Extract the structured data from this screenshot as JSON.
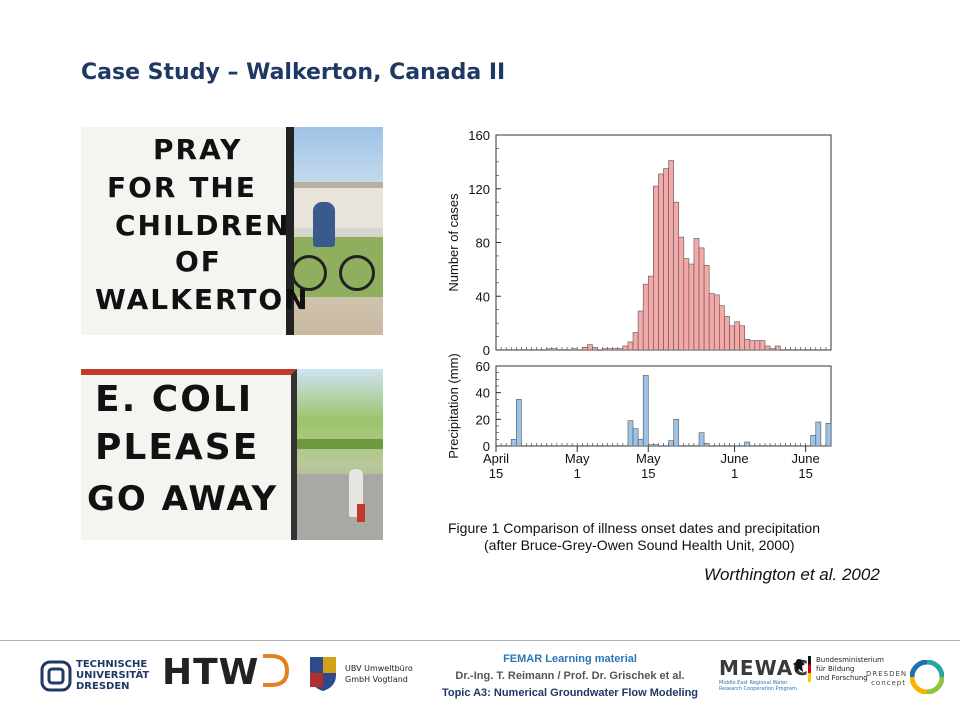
{
  "slide": {
    "title": "Case Study – Walkerton, Canada II",
    "caption_line1": "Figure 1  Comparison of illness onset dates and precipitation",
    "caption_line2": "(after Bruce-Grey-Owen Sound Health Unit, 2000)",
    "citation": "Worthington et al. 2002"
  },
  "photos": {
    "top_sign_lines": [
      "PRAY",
      "FOR   THE",
      "CHILDREN",
      "OF",
      "WALKERTON"
    ],
    "bottom_sign_lines": [
      "E. COLI",
      "PLEASE",
      "GO    AWAY"
    ]
  },
  "footer": {
    "tu_line1": "TECHNISCHE",
    "tu_line2": "UNIVERSITÄT",
    "tu_line3": "DRESDEN",
    "htwd": "HTW",
    "ubv_line1": "UBV Umweltbüro",
    "ubv_line2": "GmbH Vogtland",
    "center_line1": "FEMAR Learning  material",
    "center_line2": "Dr.-Ing. T. Reimann / Prof. Dr. Grischek et al.",
    "center_line3": "Topic A3: Numerical Groundwater Flow Modeling",
    "mewac": "MEWAC",
    "mewac_sub1": "Middle East Regional Water",
    "mewac_sub2": "Research Cooperation Program",
    "bmbf_line1": "Bundesministerium",
    "bmbf_line2": "für Bildung",
    "bmbf_line3": "und Forschung",
    "dc_line1": "DRESDEN",
    "dc_line2": "concept"
  },
  "chart_data": [
    {
      "type": "bar",
      "title": "",
      "ylabel": "Number of cases",
      "ylim": [
        0,
        160
      ],
      "yticks": [
        "0",
        "40",
        "80",
        "120",
        "160"
      ],
      "color": "#f4a9a8",
      "values": [
        0,
        0,
        0,
        0,
        0,
        0,
        0,
        0,
        0,
        0,
        1,
        1,
        0,
        0,
        0,
        1,
        0,
        2,
        4,
        2,
        0,
        1,
        1,
        1,
        1,
        3,
        6,
        13,
        29,
        49,
        55,
        122,
        131,
        135,
        141,
        110,
        84,
        68,
        64,
        83,
        76,
        63,
        42,
        41,
        33,
        25,
        18,
        21,
        18,
        8,
        7,
        7,
        7,
        3,
        1,
        3,
        0,
        0
      ]
    },
    {
      "type": "bar",
      "title": "",
      "ylabel": "Precipitation  (mm)",
      "ylim": [
        0,
        60
      ],
      "yticks": [
        "0",
        "20",
        "40",
        "60"
      ],
      "color": "#9dc3e6",
      "values": [
        0,
        0,
        0,
        5,
        35,
        0,
        0,
        0,
        0,
        0,
        0,
        0,
        0,
        0,
        0,
        0,
        0,
        0,
        0,
        0,
        0,
        0,
        0,
        0,
        0,
        0,
        19,
        13,
        5,
        53,
        1,
        1,
        0,
        0,
        4,
        20,
        0,
        0,
        0,
        0,
        10,
        2,
        0,
        0,
        0,
        0,
        0,
        0,
        0,
        3,
        0,
        0,
        0,
        0,
        0,
        0,
        0,
        0,
        0,
        0,
        0,
        0,
        8,
        18,
        0,
        17
      ],
      "x_ticks": [
        {
          "day": 0,
          "line1": "April",
          "line2": "15"
        },
        {
          "day": 16,
          "line1": "May",
          "line2": "1"
        },
        {
          "day": 30,
          "line1": "May",
          "line2": "15"
        },
        {
          "day": 47,
          "line1": "June",
          "line2": "1"
        },
        {
          "day": 61,
          "line1": "June",
          "line2": "15"
        }
      ]
    }
  ]
}
